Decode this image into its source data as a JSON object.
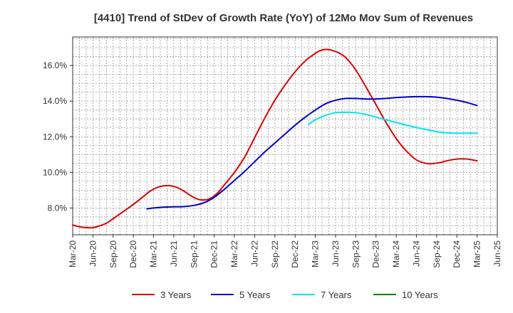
{
  "chart_data": {
    "type": "line",
    "title": "[4410]  Trend of StDev of Growth Rate (YoY) of 12Mo Mov Sum of Revenues",
    "xlabel": "",
    "ylabel": "",
    "x_categories": [
      "Mar-20",
      "Jun-20",
      "Sep-20",
      "Dec-20",
      "Mar-21",
      "Jun-21",
      "Sep-21",
      "Dec-21",
      "Mar-22",
      "Jun-22",
      "Sep-22",
      "Dec-22",
      "Mar-23",
      "Jun-23",
      "Sep-23",
      "Dec-23",
      "Mar-24",
      "Jun-24",
      "Sep-24",
      "Dec-24",
      "Mar-25",
      "Jun-25"
    ],
    "ylim": [
      6.5,
      17.6
    ],
    "y_ticks": [
      8,
      10,
      12,
      14,
      16
    ],
    "y_tick_labels": [
      "8.0%",
      "10.0%",
      "12.0%",
      "14.0%",
      "16.0%"
    ],
    "grid": true,
    "series": [
      {
        "name": "3 Years",
        "color": "#dd0000",
        "x": [
          0,
          0.33,
          0.67,
          1,
          1.33,
          1.67,
          2,
          2.5,
          3,
          3.5,
          3.83,
          4.17,
          4.5,
          4.83,
          5.17,
          5.5,
          5.83,
          6.17,
          6.5,
          6.83,
          7.17,
          7.5,
          8,
          8.5,
          9,
          9.5,
          10,
          10.5,
          11,
          11.5,
          11.83,
          12.17,
          12.5,
          12.83,
          13.17,
          13.5,
          14,
          14.5,
          15,
          15.5,
          16,
          16.5,
          17,
          17.5,
          17.83,
          18.17,
          18.5,
          19,
          19.5,
          20
        ],
        "values": [
          7.05,
          6.95,
          6.9,
          6.9,
          7.0,
          7.15,
          7.4,
          7.8,
          8.2,
          8.65,
          8.95,
          9.15,
          9.25,
          9.25,
          9.15,
          8.95,
          8.7,
          8.5,
          8.45,
          8.55,
          8.85,
          9.3,
          10.0,
          10.85,
          11.95,
          13.05,
          14.05,
          14.9,
          15.65,
          16.25,
          16.55,
          16.8,
          16.9,
          16.85,
          16.7,
          16.45,
          15.75,
          14.8,
          13.8,
          12.8,
          11.9,
          11.2,
          10.7,
          10.5,
          10.5,
          10.55,
          10.65,
          10.75,
          10.75,
          10.65
        ]
      },
      {
        "name": "5 Years",
        "color": "#0000cc",
        "x": [
          3.67,
          4,
          4.5,
          5,
          5.5,
          6,
          6.5,
          7,
          7.5,
          8,
          8.5,
          9,
          9.5,
          10,
          10.5,
          11,
          11.5,
          12,
          12.5,
          13,
          13.5,
          14,
          14.5,
          15,
          15.5,
          16,
          16.5,
          17,
          17.5,
          18,
          18.5,
          19,
          19.5,
          20
        ],
        "values": [
          7.95,
          8.0,
          8.05,
          8.07,
          8.08,
          8.15,
          8.3,
          8.6,
          9.05,
          9.55,
          10.05,
          10.6,
          11.15,
          11.65,
          12.15,
          12.65,
          13.1,
          13.5,
          13.85,
          14.05,
          14.15,
          14.15,
          14.12,
          14.12,
          14.15,
          14.2,
          14.23,
          14.25,
          14.25,
          14.22,
          14.15,
          14.05,
          13.92,
          13.75
        ]
      },
      {
        "name": "7 Years",
        "color": "#00e5ee",
        "x": [
          11.67,
          12,
          12.5,
          13,
          13.5,
          14,
          14.5,
          15,
          15.5,
          16,
          16.5,
          17,
          17.5,
          18,
          18.5,
          19,
          19.5,
          20
        ],
        "values": [
          12.7,
          12.95,
          13.2,
          13.35,
          13.38,
          13.35,
          13.25,
          13.1,
          12.95,
          12.8,
          12.65,
          12.52,
          12.4,
          12.28,
          12.22,
          12.2,
          12.2,
          12.2
        ]
      },
      {
        "name": "10 Years",
        "color": "#008000",
        "x": [],
        "values": []
      }
    ],
    "legend_position": "bottom"
  }
}
